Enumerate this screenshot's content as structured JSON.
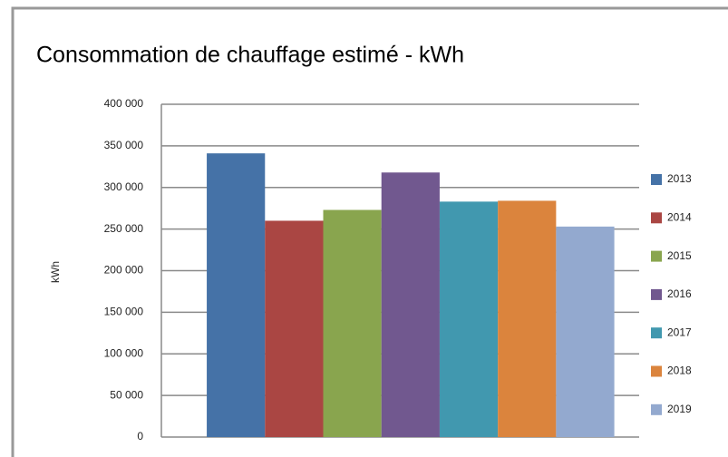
{
  "chart_data": {
    "type": "bar",
    "title": "Consommation de chauffage estimé - kWh",
    "y_label": "kWh",
    "categories": [
      null
    ],
    "series": [
      {
        "name": "2013",
        "color": "#4572a7",
        "values": [
          341000
        ]
      },
      {
        "name": "2014",
        "color": "#aa4643",
        "values": [
          260000
        ]
      },
      {
        "name": "2015",
        "color": "#89a54e",
        "values": [
          273000
        ]
      },
      {
        "name": "2016",
        "color": "#71588f",
        "values": [
          318000
        ]
      },
      {
        "name": "2017",
        "color": "#4198af",
        "values": [
          283000
        ]
      },
      {
        "name": "2018",
        "color": "#db843d",
        "values": [
          284000
        ]
      },
      {
        "name": "2019",
        "color": "#93a9cf",
        "values": [
          253000
        ]
      }
    ],
    "ylim": [
      0,
      400000
    ],
    "yticks": [
      0,
      {
        "value": 50000,
        "label": "50 000"
      },
      {
        "value": 100000,
        "label": "100 000"
      },
      {
        "value": 150000,
        "label": "150 000"
      },
      {
        "value": 200000,
        "label": "200 000"
      },
      {
        "value": 250000,
        "label": "250 000"
      },
      {
        "value": 300000,
        "label": "300 000"
      },
      {
        "value": 350000,
        "label": "350 000"
      },
      {
        "value": 400000,
        "label": "400 000"
      }
    ],
    "grid": true,
    "legend": "right"
  }
}
